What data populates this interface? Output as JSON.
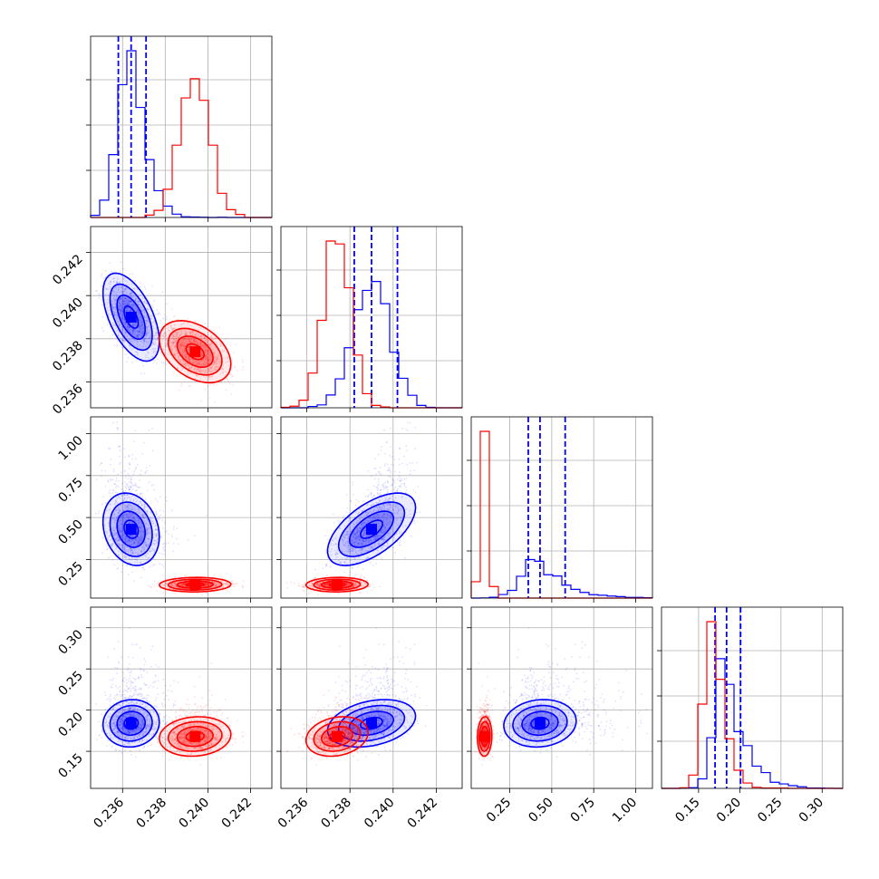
{
  "colors": {
    "series_a": "#0000ff",
    "series_b": "#ff0000",
    "grid": "#b0b0b0"
  },
  "chart_data": {
    "type": "corner",
    "grid": true,
    "parameters": [
      {
        "range": [
          0.2345,
          0.243
        ],
        "ticks": [
          0.236,
          0.238,
          0.24,
          0.242
        ],
        "tick_labels": [
          "0.236",
          "0.238",
          "0.240",
          "0.242"
        ]
      },
      {
        "range": [
          0.2348,
          0.2432
        ],
        "ticks": [
          0.236,
          0.238,
          0.24,
          0.242
        ],
        "tick_labels": [
          "0.236",
          "0.238",
          "0.240",
          "0.242"
        ]
      },
      {
        "range": [
          0.02,
          1.1
        ],
        "ticks": [
          0.25,
          0.5,
          0.75,
          1.0
        ],
        "tick_labels": [
          "0.25",
          "0.50",
          "0.75",
          "1.00"
        ]
      },
      {
        "range": [
          0.105,
          0.325
        ],
        "ticks": [
          0.15,
          0.2,
          0.25,
          0.3
        ],
        "tick_labels": [
          "0.15",
          "0.20",
          "0.25",
          "0.30"
        ]
      }
    ],
    "series": [
      {
        "key": "blue",
        "color": "#0000ff",
        "median": [
          0.2364,
          0.239,
          0.43,
          0.184
        ],
        "sigma": [
          0.00055,
          0.00085,
          0.09,
          0.012
        ],
        "tail": [
          0.0004,
          0.0,
          0.18,
          0.03
        ],
        "quantiles": [
          [
            0.2358,
            0.2364,
            0.2371
          ],
          [
            0.2382,
            0.239,
            0.2402
          ],
          [
            0.36,
            0.43,
            0.58
          ],
          [
            0.17,
            0.184,
            0.201
          ]
        ],
        "correlation": [
          [
            1,
            -0.55,
            -0.2,
            0.05
          ],
          [
            -0.55,
            1,
            0.6,
            0.3
          ],
          [
            -0.2,
            0.6,
            1,
            0.1
          ],
          [
            0.05,
            0.3,
            0.1,
            1
          ]
        ]
      },
      {
        "key": "red",
        "color": "#ff0000",
        "median": [
          0.2394,
          0.2374,
          0.1,
          0.168
        ],
        "sigma": [
          0.0007,
          0.0006,
          0.018,
          0.01
        ],
        "tail": [
          0.0,
          0.0,
          0.0,
          0.01
        ],
        "quantiles": null,
        "correlation": [
          [
            1,
            -0.4,
            0.05,
            0.1
          ],
          [
            -0.4,
            1,
            0.05,
            0.2
          ],
          [
            0.05,
            0.05,
            1,
            0.05
          ],
          [
            0.1,
            0.2,
            0.05,
            1
          ]
        ]
      }
    ]
  }
}
